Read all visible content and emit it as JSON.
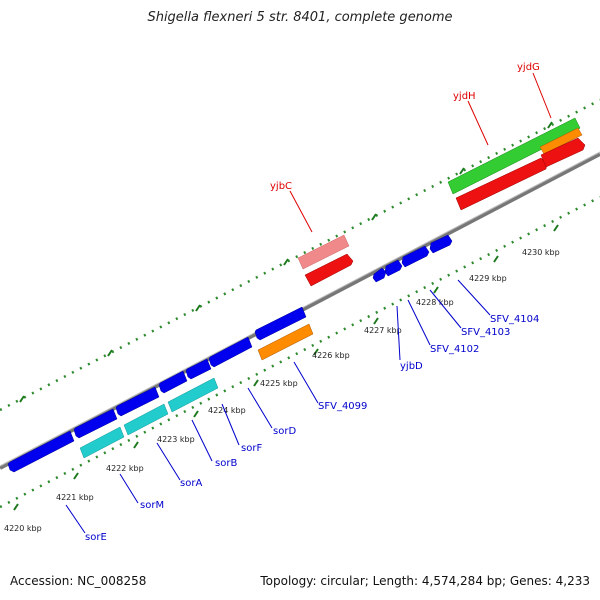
{
  "title": "Shigella flexneri 5 str. 8401, complete genome",
  "footer": {
    "accession": "Accession: NC_008258",
    "topology": "Topology: circular; Length: 4,574,284 bp; Genes: 4,233"
  },
  "colors": {
    "backbone": "#808080",
    "dots": "#2e8b2e",
    "blue": "#0000ee",
    "cyan": "#22cccc",
    "orange": "#ff8c00",
    "pink": "#f08080",
    "red": "#ee1111",
    "green": "#33cc33",
    "label_blue": "#0000cc",
    "label_red": "#dd0000"
  },
  "ticks": [
    {
      "label": "4220 kbp"
    },
    {
      "label": "4221 kbp"
    },
    {
      "label": "4222 kbp"
    },
    {
      "label": "4223 kbp"
    },
    {
      "label": "4224 kbp"
    },
    {
      "label": "4225 kbp"
    },
    {
      "label": "4226 kbp"
    },
    {
      "label": "4227 kbp"
    },
    {
      "label": "4228 kbp"
    },
    {
      "label": "4229 kbp"
    },
    {
      "label": "4230 kbp"
    }
  ],
  "gene_labels": {
    "sorE": "sorE",
    "sorM": "sorM",
    "sorA": "sorA",
    "sorB": "sorB",
    "sorF": "sorF",
    "sorD": "sorD",
    "SFV_4099": "SFV_4099",
    "yjbD": "yjbD",
    "SFV_4102": "SFV_4102",
    "SFV_4103": "SFV_4103",
    "SFV_4104": "SFV_4104",
    "yjbC": "yjbC",
    "yjdH": "yjdH",
    "yjdG": "yjdG"
  }
}
